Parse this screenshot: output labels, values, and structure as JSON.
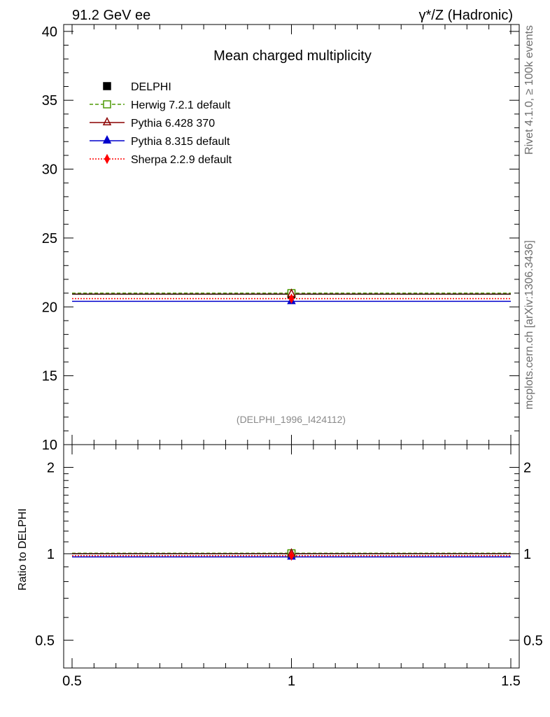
{
  "header": {
    "left": "91.2 GeV ee",
    "right": "γ*/Z (Hadronic)"
  },
  "side": {
    "top": "Rivet 4.1.0, ≥ 100k events",
    "bottom": "mcplots.cern.ch [arXiv:1306.3436]"
  },
  "chart_data": {
    "type": "line",
    "title": "Mean charged multiplicity",
    "ref_label": "(DELPHI_1996_I424112)",
    "xlabel": "",
    "ylabel": "",
    "xlim": [
      0.5,
      1.5
    ],
    "ylim": [
      10,
      40.5
    ],
    "x_ticks": [
      "0.5",
      "1",
      "1.5"
    ],
    "y_ticks": [
      "10",
      "15",
      "20",
      "25",
      "30",
      "35",
      "40"
    ],
    "series": [
      {
        "name": "DELPHI",
        "value": 20.92,
        "color": "#000000",
        "marker": "square-filled",
        "style": "none"
      },
      {
        "name": "Herwig 7.2.1 default",
        "value": 21.0,
        "color": "#4e9a06",
        "marker": "square-open",
        "style": "dashed"
      },
      {
        "name": "Pythia 6.428 370",
        "value": 20.93,
        "color": "#8b0000",
        "marker": "triangle-open",
        "style": "solid"
      },
      {
        "name": "Pythia 8.315 default",
        "value": 20.4,
        "color": "#0000cc",
        "marker": "triangle-filled",
        "style": "solid"
      },
      {
        "name": "Sherpa 2.2.9 default",
        "value": 20.6,
        "color": "#ff0000",
        "marker": "diamond-filled",
        "style": "dotted"
      }
    ],
    "ratio": {
      "ylabel": "Ratio to DELPHI",
      "y_ticks": [
        "0.5",
        "1",
        "2"
      ],
      "ylim": [
        0.4,
        2.4
      ]
    }
  }
}
